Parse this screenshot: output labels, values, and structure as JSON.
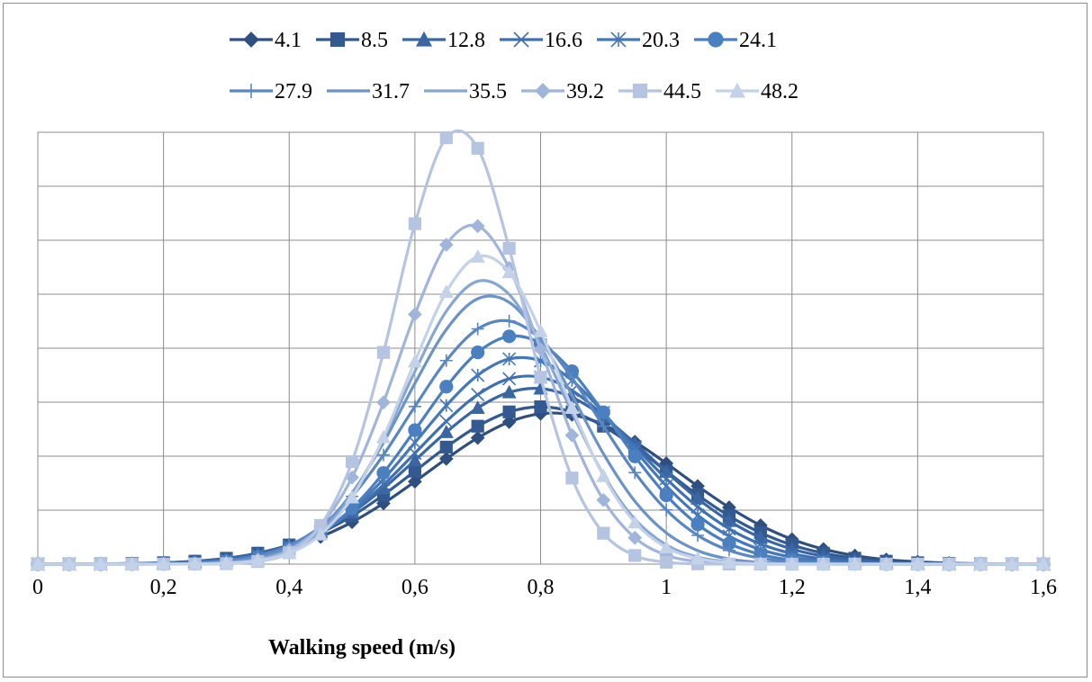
{
  "chart_data": {
    "type": "line",
    "title": "",
    "xlabel": "Walking speed (m/s)",
    "ylabel": "",
    "xlim": [
      0,
      1.6
    ],
    "ylim": [
      0,
      7
    ],
    "grid": true,
    "legend_position": "top",
    "x_tick_labels": [
      "0",
      "0,2",
      "0,4",
      "0,6",
      "0,8",
      "1",
      "1,2",
      "1,4",
      "1,6"
    ],
    "x": [
      0,
      0.05,
      0.1,
      0.15,
      0.2,
      0.25,
      0.3,
      0.35,
      0.4,
      0.45,
      0.5,
      0.55,
      0.6,
      0.65,
      0.7,
      0.75,
      0.8,
      0.85,
      0.9,
      0.95,
      1.0,
      1.05,
      1.1,
      1.15,
      1.2,
      1.25,
      1.3,
      1.35,
      1.4,
      1.45,
      1.5,
      1.55,
      1.6
    ],
    "series": [
      {
        "name": "4.1",
        "color": "#2e4f7f",
        "marker": "diamond",
        "mu": 0.82,
        "sigma": 0.2,
        "peak": 2.45
      },
      {
        "name": "8.5",
        "color": "#335a90",
        "marker": "square",
        "mu": 0.8,
        "sigma": 0.195,
        "peak": 2.55
      },
      {
        "name": "12.8",
        "color": "#3a67a3",
        "marker": "triangle",
        "mu": 0.79,
        "sigma": 0.185,
        "peak": 2.85
      },
      {
        "name": "16.6",
        "color": "#3f70b0",
        "marker": "x",
        "mu": 0.78,
        "sigma": 0.175,
        "peak": 3.05
      },
      {
        "name": "20.3",
        "color": "#4578b9",
        "marker": "star",
        "mu": 0.77,
        "sigma": 0.165,
        "peak": 3.35
      },
      {
        "name": "24.1",
        "color": "#4a7fc0",
        "marker": "circle",
        "mu": 0.76,
        "sigma": 0.155,
        "peak": 3.7
      },
      {
        "name": "27.9",
        "color": "#5a86c2",
        "marker": "plus",
        "mu": 0.74,
        "sigma": 0.15,
        "peak": 3.95
      },
      {
        "name": "31.7",
        "color": "#6a93c8",
        "marker": "none",
        "mu": 0.72,
        "sigma": 0.135,
        "peak": 4.35
      },
      {
        "name": "35.5",
        "color": "#86a6d3",
        "marker": "none",
        "mu": 0.71,
        "sigma": 0.125,
        "peak": 4.6
      },
      {
        "name": "39.2",
        "color": "#9fb5db",
        "marker": "diamond",
        "mu": 0.69,
        "sigma": 0.115,
        "peak": 5.5
      },
      {
        "name": "44.5",
        "color": "#b4c4e1",
        "marker": "square",
        "mu": 0.67,
        "sigma": 0.1,
        "peak": 7.05
      },
      {
        "name": "48.2",
        "color": "#c4d2e9",
        "marker": "triangle",
        "mu": 0.71,
        "sigma": 0.12,
        "peak": 5.0
      }
    ]
  }
}
